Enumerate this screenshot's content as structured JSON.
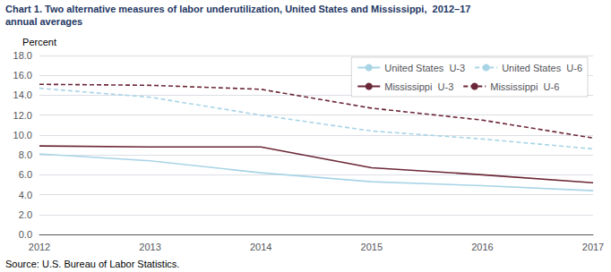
{
  "chart_data": {
    "type": "line",
    "title": "Chart 1. Two alternative measures of labor underutilization, United States and Mississippi,  2012–17",
    "subtitle": "annual averages",
    "ylabel": "Percent",
    "annotations": [
      "Source: U.S. Bureau of Labor Statistics."
    ],
    "x": [
      2012,
      2013,
      2014,
      2015,
      2016,
      2017
    ],
    "series": [
      {
        "name": "United States  U-3",
        "color": "#a8d4e6",
        "line_style": "solid",
        "values": [
          8.1,
          7.4,
          6.2,
          5.3,
          4.9,
          4.4
        ]
      },
      {
        "name": "United States  U-6",
        "color": "#a8d4e6",
        "line_style": "dashed",
        "values": [
          14.7,
          13.8,
          12.0,
          10.4,
          9.6,
          8.6
        ]
      },
      {
        "name": "Mississippi  U-3",
        "color": "#6b2737",
        "line_style": "solid",
        "values": [
          8.9,
          8.8,
          8.8,
          6.7,
          6.0,
          5.2
        ]
      },
      {
        "name": "Mississippi  U-6",
        "color": "#6b2737",
        "line_style": "dashed",
        "values": [
          15.1,
          15.0,
          14.6,
          12.7,
          11.5,
          9.7
        ]
      }
    ],
    "xlim": [
      2012,
      2017
    ],
    "xticks": [
      2012,
      2013,
      2014,
      2015,
      2016,
      2017
    ],
    "ylim": [
      0,
      18.0
    ],
    "yticks": [
      {
        "value": 0,
        "label": "0.0"
      },
      {
        "value": 2,
        "label": "2.0"
      },
      {
        "value": 4,
        "label": "4.0"
      },
      {
        "value": 6,
        "label": "6.0"
      },
      {
        "value": 8,
        "label": "8.0"
      },
      {
        "value": 10,
        "label": "10.0"
      },
      {
        "value": 12,
        "label": "12.0"
      },
      {
        "value": 14,
        "label": "14.0"
      },
      {
        "value": 16,
        "label": "16.0"
      },
      {
        "value": 18,
        "label": "18.0"
      }
    ],
    "grid": true,
    "legend": "upper right"
  }
}
